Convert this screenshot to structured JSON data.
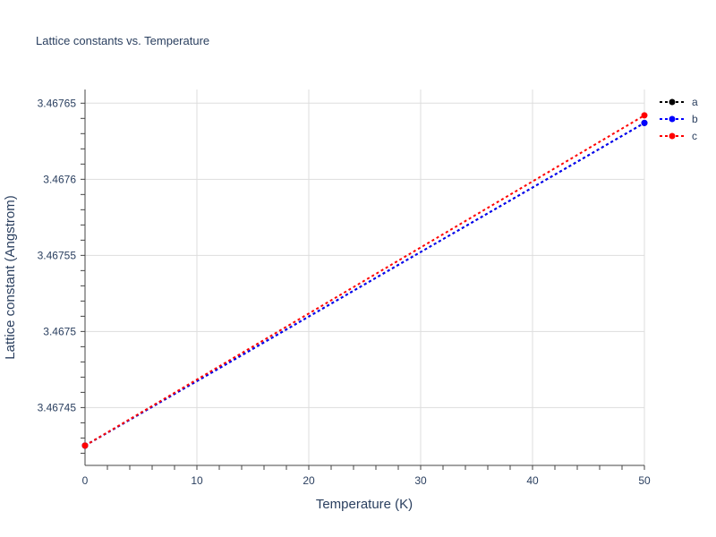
{
  "chart_data": {
    "type": "line",
    "title": "Lattice constants vs. Temperature",
    "xlabel": "Temperature (K)",
    "ylabel": "Lattice constant (Angstrom)",
    "xlim": [
      0,
      50
    ],
    "ylim": [
      3.467412,
      3.467659
    ],
    "xticks": [
      0,
      10,
      20,
      30,
      40,
      50
    ],
    "xtick_labels": [
      "0",
      "10",
      "20",
      "30",
      "40",
      "50"
    ],
    "yticks": [
      3.46745,
      3.4675,
      3.46755,
      3.4676,
      3.46765
    ],
    "ytick_labels": [
      "3.46745",
      "3.4675",
      "3.46755",
      "3.4676",
      "3.46765"
    ],
    "grid": true,
    "legend_position": "top-right",
    "line_style": "dotted",
    "x": [
      0,
      50
    ],
    "series": [
      {
        "name": "a",
        "color": "#000000",
        "values": [
          3.467425,
          3.467637
        ]
      },
      {
        "name": "b",
        "color": "#0000ff",
        "values": [
          3.467425,
          3.467637
        ]
      },
      {
        "name": "c",
        "color": "#ff0000",
        "values": [
          3.467425,
          3.467642
        ]
      }
    ]
  }
}
